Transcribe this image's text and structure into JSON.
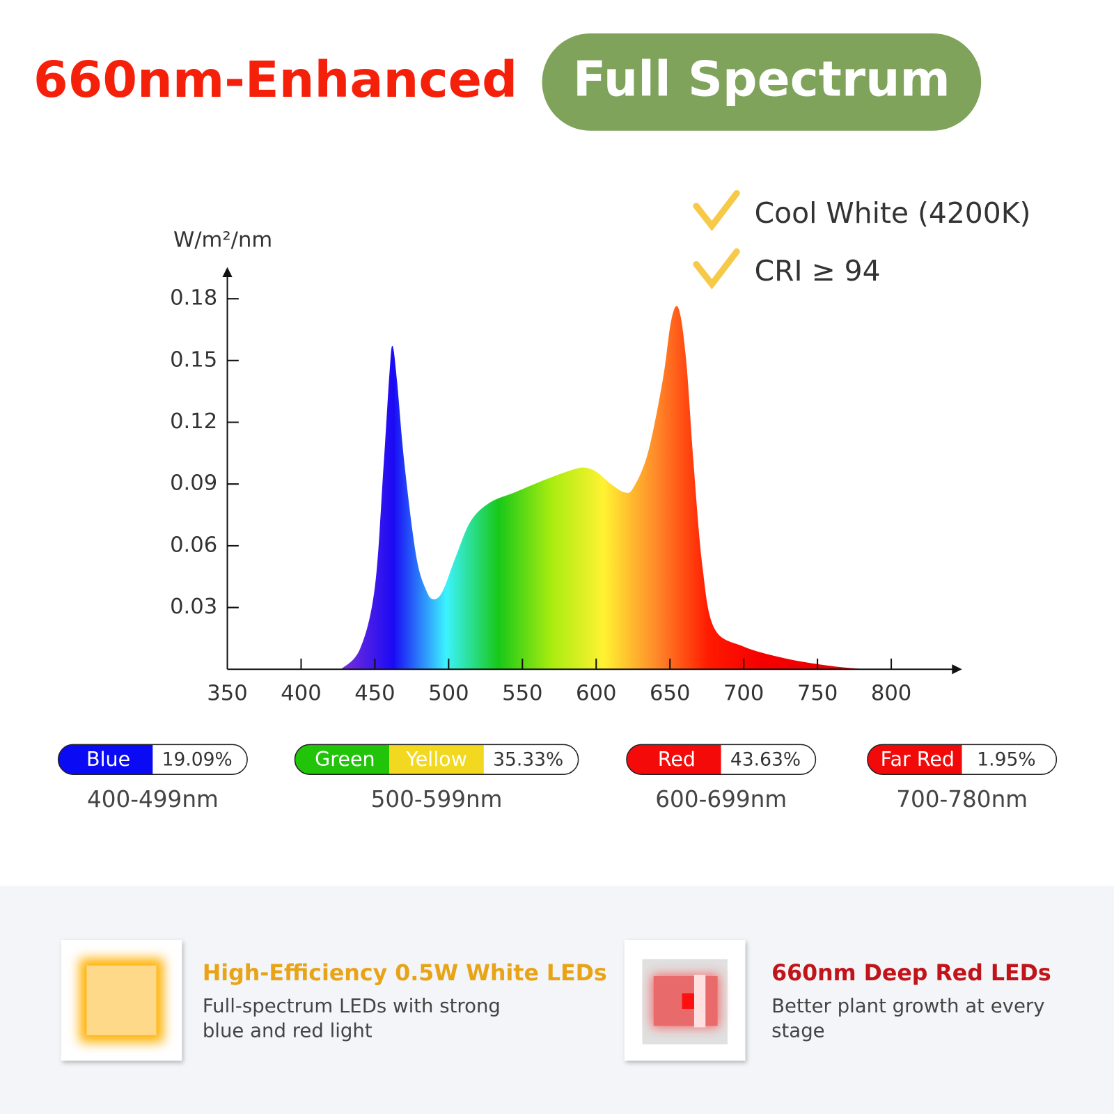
{
  "header": {
    "title": "660nm-Enhanced",
    "badge": "Full Spectrum"
  },
  "chart_data": {
    "type": "area",
    "y_label": "W/m²/nm",
    "annotations": [
      "Cool White (4200K)",
      "CRI ≥ 94"
    ],
    "x": [
      427,
      440,
      450,
      456,
      460,
      462,
      465,
      470,
      478,
      485,
      490,
      496,
      505,
      515,
      528,
      545,
      565,
      580,
      591,
      600,
      610,
      619,
      625,
      635,
      645,
      651,
      656,
      661,
      666,
      672,
      680,
      700,
      730,
      760,
      783
    ],
    "values": [
      0,
      0.01,
      0.04,
      0.1,
      0.145,
      0.157,
      0.14,
      0.1,
      0.055,
      0.038,
      0.034,
      0.038,
      0.055,
      0.072,
      0.081,
      0.086,
      0.092,
      0.096,
      0.098,
      0.096,
      0.09,
      0.086,
      0.088,
      0.105,
      0.14,
      0.17,
      0.175,
      0.15,
      0.1,
      0.05,
      0.02,
      0.011,
      0.005,
      0.0015,
      0
    ],
    "colors": [
      "#7a30d8",
      "#1a0af5",
      "#3cf3ff",
      "#18c818",
      "#a8ec10",
      "#fff232",
      "#ff8a2a",
      "#ff1a00",
      "#f50000",
      "#ee0000",
      "#e80000"
    ],
    "xlim": [
      350,
      846
    ],
    "ylim": [
      0,
      0.194
    ],
    "xticks": [
      350,
      400,
      450,
      500,
      550,
      600,
      650,
      700,
      750,
      800
    ],
    "yticks": [
      0.03,
      0.06,
      0.09,
      0.12,
      0.15,
      0.18
    ]
  },
  "bands": {
    "names": [
      [
        "Blue"
      ],
      [
        "Green",
        "Yellow"
      ],
      [
        "Red"
      ],
      [
        "Far Red"
      ]
    ],
    "colors": [
      [
        "#0a0af5"
      ],
      [
        "#22c40a",
        "#f2d81e"
      ],
      [
        "#f50a0a"
      ],
      [
        "#f20a0a"
      ]
    ],
    "values": [
      19.09,
      35.33,
      43.63,
      1.95
    ],
    "value_labels": [
      "19.09%",
      "35.33%",
      "43.63%",
      "1.95%"
    ],
    "ranges": [
      "400-499nm",
      "500-599nm",
      "600-699nm",
      "700-780nm"
    ]
  },
  "features": [
    {
      "title": "High-Efficiency 0.5W White LEDs",
      "lines": [
        "Full-spectrum LEDs with strong",
        "blue and red light"
      ]
    },
    {
      "title": "660nm Deep Red LEDs",
      "lines": [
        "Better plant growth at every",
        "stage"
      ]
    }
  ]
}
